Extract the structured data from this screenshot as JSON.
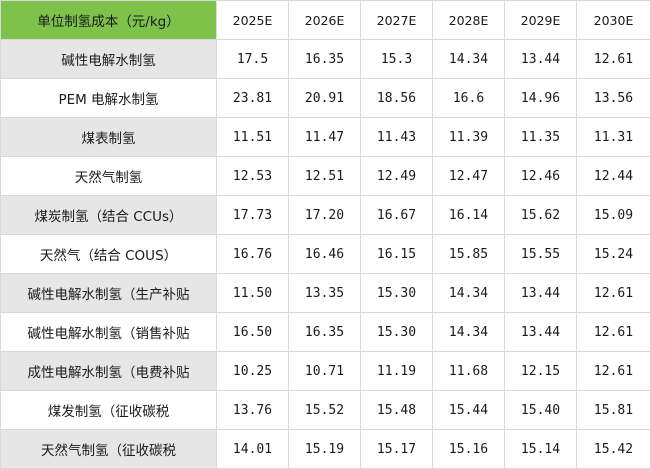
{
  "table": {
    "corner": "单位制氢成本（元/kg）",
    "years": [
      "2025E",
      "2026E",
      "2027E",
      "2028E",
      "2029E",
      "2030E"
    ],
    "rows": [
      {
        "label": "碱性电解水制氢",
        "values": [
          "17.5",
          "16.35",
          "15.3",
          "14.34",
          "13.44",
          "12.61"
        ]
      },
      {
        "label": "PEM 电解水制氢",
        "values": [
          "23.81",
          "20.91",
          "18.56",
          "16.6",
          "14.96",
          "13.56"
        ]
      },
      {
        "label": "煤表制氢",
        "values": [
          "11.51",
          "11.47",
          "11.43",
          "11.39",
          "11.35",
          "11.31"
        ]
      },
      {
        "label": "天然气制氢",
        "values": [
          "12.53",
          "12.51",
          "12.49",
          "12.47",
          "12.46",
          "12.44"
        ]
      },
      {
        "label": "煤炭制氢（结合 CCUs）",
        "values": [
          "17.73",
          "17.20",
          "16.67",
          "16.14",
          "15.62",
          "15.09"
        ]
      },
      {
        "label": "天然气（结合 COUS）",
        "values": [
          "16.76",
          "16.46",
          "16.15",
          "15.85",
          "15.55",
          "15.24"
        ]
      },
      {
        "label": "碱性电解水制氢（生产补贴",
        "values": [
          "11.50",
          "13.35",
          "15.30",
          "14.34",
          "13.44",
          "12.61"
        ]
      },
      {
        "label": "碱性电解水制氢（销售补贴",
        "values": [
          "16.50",
          "16.35",
          "15.30",
          "14.34",
          "13.44",
          "12.61"
        ]
      },
      {
        "label": "成性电解水制氢（电费补贴",
        "values": [
          "10.25",
          "10.71",
          "11.19",
          "11.68",
          "12.15",
          "12.61"
        ]
      },
      {
        "label": "煤发制氢（征收碳税",
        "values": [
          "13.76",
          "15.52",
          "15.48",
          "15.44",
          "15.40",
          "15.81"
        ]
      },
      {
        "label": "天然气制氢（征收碳税",
        "values": [
          "14.01",
          "15.19",
          "15.17",
          "15.16",
          "15.14",
          "15.42"
        ]
      }
    ]
  }
}
